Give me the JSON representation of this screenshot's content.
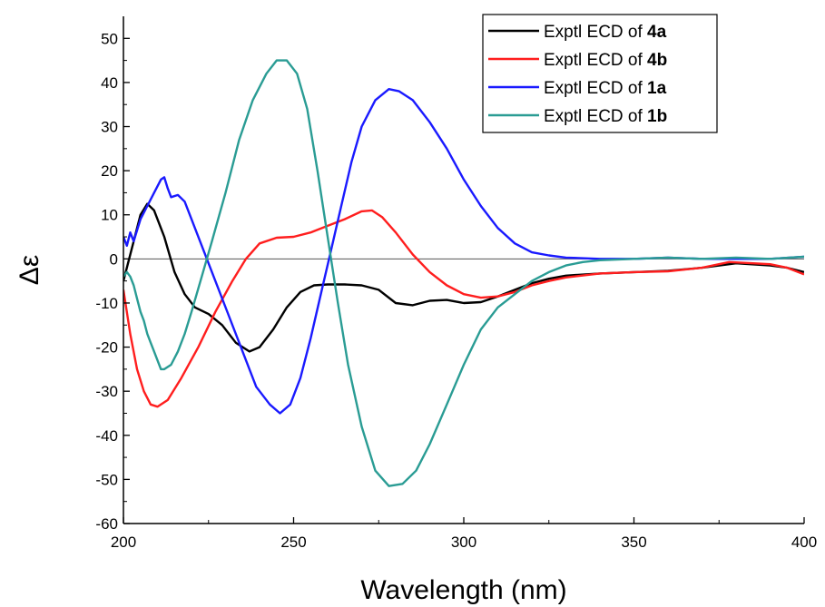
{
  "chart_data": {
    "type": "line",
    "xlabel": "Wavelength (nm)",
    "ylabel": "Δε",
    "xlim": [
      200,
      400
    ],
    "ylim": [
      -60,
      55
    ],
    "x_ticks": [
      200,
      250,
      300,
      350,
      400
    ],
    "y_ticks": [
      -60,
      -50,
      -40,
      -30,
      -20,
      -10,
      0,
      10,
      20,
      30,
      40,
      50
    ],
    "zero_line": true,
    "grid": false,
    "legend_position": "top-right",
    "series": [
      {
        "name": "Exptl ECD of 4a",
        "name_prefix": "Exptl ECD of ",
        "name_compound": "4a",
        "color": "#000000",
        "points": [
          [
            200,
            -5
          ],
          [
            203,
            4
          ],
          [
            205,
            10
          ],
          [
            207,
            12.5
          ],
          [
            209,
            11
          ],
          [
            212,
            5
          ],
          [
            215,
            -3
          ],
          [
            218,
            -8
          ],
          [
            221,
            -11
          ],
          [
            225,
            -12.5
          ],
          [
            229,
            -15
          ],
          [
            233,
            -19
          ],
          [
            237,
            -21
          ],
          [
            240,
            -20
          ],
          [
            244,
            -16
          ],
          [
            248,
            -11
          ],
          [
            252,
            -7.5
          ],
          [
            256,
            -6
          ],
          [
            260,
            -5.8
          ],
          [
            265,
            -5.8
          ],
          [
            270,
            -6
          ],
          [
            275,
            -7
          ],
          [
            280,
            -10
          ],
          [
            285,
            -10.5
          ],
          [
            290,
            -9.5
          ],
          [
            295,
            -9.3
          ],
          [
            300,
            -10
          ],
          [
            305,
            -9.8
          ],
          [
            310,
            -8.5
          ],
          [
            315,
            -7
          ],
          [
            320,
            -5.5
          ],
          [
            325,
            -4.5
          ],
          [
            330,
            -3.8
          ],
          [
            340,
            -3.3
          ],
          [
            350,
            -3
          ],
          [
            360,
            -2.7
          ],
          [
            370,
            -2
          ],
          [
            380,
            -1
          ],
          [
            390,
            -1.5
          ],
          [
            395,
            -2
          ],
          [
            400,
            -3
          ]
        ]
      },
      {
        "name": "Exptl ECD of 4b",
        "name_prefix": "Exptl ECD of ",
        "name_compound": "4b",
        "color": "#ff1e1e",
        "points": [
          [
            200,
            -7
          ],
          [
            202,
            -17
          ],
          [
            204,
            -25
          ],
          [
            206,
            -30
          ],
          [
            208,
            -33
          ],
          [
            210,
            -33.5
          ],
          [
            213,
            -32
          ],
          [
            217,
            -27
          ],
          [
            222,
            -20
          ],
          [
            227,
            -12
          ],
          [
            232,
            -5
          ],
          [
            236,
            0
          ],
          [
            240,
            3.5
          ],
          [
            245,
            4.8
          ],
          [
            250,
            5
          ],
          [
            255,
            6
          ],
          [
            260,
            7.5
          ],
          [
            265,
            9
          ],
          [
            270,
            10.8
          ],
          [
            273,
            11
          ],
          [
            276,
            9.5
          ],
          [
            280,
            6
          ],
          [
            285,
            1
          ],
          [
            290,
            -3
          ],
          [
            295,
            -6
          ],
          [
            300,
            -8
          ],
          [
            305,
            -8.8
          ],
          [
            310,
            -8.5
          ],
          [
            315,
            -7.5
          ],
          [
            320,
            -6
          ],
          [
            325,
            -5
          ],
          [
            330,
            -4.2
          ],
          [
            340,
            -3.3
          ],
          [
            350,
            -3
          ],
          [
            360,
            -2.8
          ],
          [
            370,
            -2
          ],
          [
            378,
            -0.7
          ],
          [
            385,
            -1
          ],
          [
            390,
            -1.2
          ],
          [
            395,
            -2
          ],
          [
            400,
            -3.5
          ]
        ]
      },
      {
        "name": "Exptl ECD of 1a",
        "name_prefix": "Exptl ECD of ",
        "name_compound": "1a",
        "color": "#1a1aff",
        "points": [
          [
            200,
            5
          ],
          [
            201,
            3
          ],
          [
            202,
            6
          ],
          [
            203,
            4
          ],
          [
            205,
            9
          ],
          [
            207,
            12
          ],
          [
            209,
            15
          ],
          [
            211,
            18
          ],
          [
            212,
            18.5
          ],
          [
            213,
            16
          ],
          [
            214,
            14
          ],
          [
            216,
            14.5
          ],
          [
            218,
            13
          ],
          [
            220,
            9
          ],
          [
            223,
            3
          ],
          [
            227,
            -5
          ],
          [
            231,
            -13
          ],
          [
            235,
            -21
          ],
          [
            239,
            -29
          ],
          [
            243,
            -33
          ],
          [
            246,
            -35
          ],
          [
            249,
            -33
          ],
          [
            252,
            -27
          ],
          [
            255,
            -18
          ],
          [
            258,
            -8
          ],
          [
            261,
            2
          ],
          [
            264,
            12
          ],
          [
            267,
            22
          ],
          [
            270,
            30
          ],
          [
            274,
            36
          ],
          [
            278,
            38.5
          ],
          [
            281,
            38
          ],
          [
            285,
            36
          ],
          [
            290,
            31
          ],
          [
            295,
            25
          ],
          [
            300,
            18
          ],
          [
            305,
            12
          ],
          [
            310,
            7
          ],
          [
            315,
            3.5
          ],
          [
            320,
            1.5
          ],
          [
            325,
            0.8
          ],
          [
            330,
            0.3
          ],
          [
            340,
            0
          ],
          [
            350,
            0
          ],
          [
            360,
            0.3
          ],
          [
            370,
            0
          ],
          [
            380,
            0
          ],
          [
            390,
            0
          ],
          [
            400,
            0.5
          ]
        ]
      },
      {
        "name": "Exptl ECD of 1b",
        "name_prefix": "Exptl ECD of ",
        "name_compound": "1b",
        "color": "#2a9c94",
        "points": [
          [
            200,
            -4
          ],
          [
            201,
            -3
          ],
          [
            202,
            -4
          ],
          [
            203,
            -6
          ],
          [
            204,
            -9
          ],
          [
            205,
            -12
          ],
          [
            206,
            -14
          ],
          [
            207,
            -17
          ],
          [
            208,
            -19
          ],
          [
            209,
            -21
          ],
          [
            210,
            -23
          ],
          [
            211,
            -25
          ],
          [
            212,
            -25
          ],
          [
            214,
            -24
          ],
          [
            216,
            -21
          ],
          [
            218,
            -17
          ],
          [
            220,
            -12
          ],
          [
            223,
            -4
          ],
          [
            226,
            4
          ],
          [
            230,
            15
          ],
          [
            234,
            27
          ],
          [
            238,
            36
          ],
          [
            242,
            42
          ],
          [
            245,
            45
          ],
          [
            248,
            45
          ],
          [
            251,
            42
          ],
          [
            254,
            34
          ],
          [
            257,
            20
          ],
          [
            260,
            5
          ],
          [
            263,
            -10
          ],
          [
            266,
            -24
          ],
          [
            270,
            -38
          ],
          [
            274,
            -48
          ],
          [
            278,
            -51.5
          ],
          [
            282,
            -51
          ],
          [
            286,
            -48
          ],
          [
            290,
            -42
          ],
          [
            295,
            -33
          ],
          [
            300,
            -24
          ],
          [
            305,
            -16
          ],
          [
            310,
            -11
          ],
          [
            315,
            -8
          ],
          [
            320,
            -5
          ],
          [
            325,
            -3
          ],
          [
            330,
            -1.5
          ],
          [
            335,
            -0.7
          ],
          [
            340,
            -0.3
          ],
          [
            350,
            0
          ],
          [
            360,
            0.3
          ],
          [
            370,
            0
          ],
          [
            380,
            0.3
          ],
          [
            390,
            0
          ],
          [
            400,
            0.5
          ]
        ]
      }
    ]
  }
}
